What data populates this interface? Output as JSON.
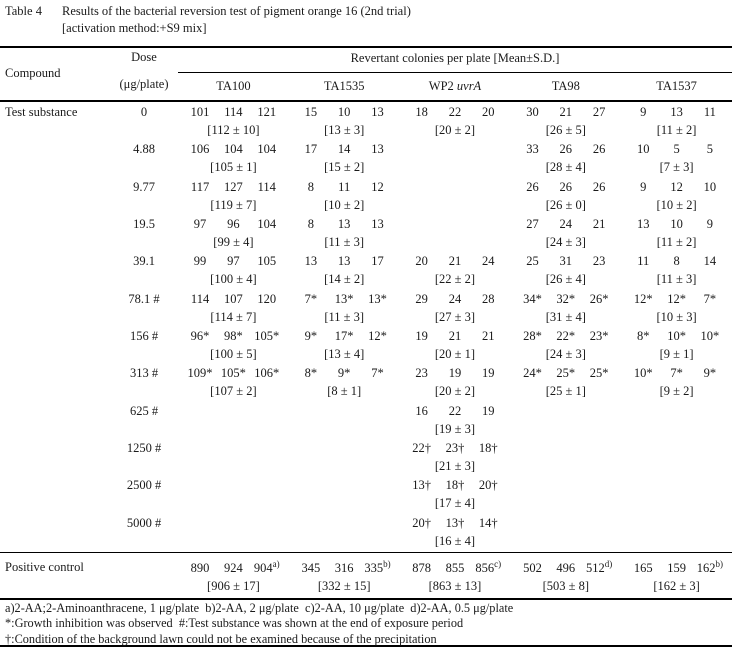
{
  "title": {
    "label": "Table 4",
    "text": "Results of the bacterial reversion test of pigment orange 16 (2nd trial)",
    "subtitle": "[activation method:+S9 mix]"
  },
  "header": {
    "compound": "Compound",
    "dose_line1": "Dose",
    "dose_line2": "(μg/plate)",
    "span": "Revertant colonies per plate [Mean±S.D.]",
    "strains": [
      {
        "label": "TA100"
      },
      {
        "label": "TA1535"
      },
      {
        "label": "WP2 ",
        "italic": "uvrA"
      },
      {
        "label": "TA98"
      },
      {
        "label": "TA1537"
      }
    ]
  },
  "table": {
    "rows": [
      {
        "compound": "Test substance",
        "dose": "0",
        "cells": [
          {
            "values": [
              "101",
              "114",
              "121"
            ],
            "mean": "[112 ± 10]"
          },
          {
            "values": [
              "15",
              "10",
              "13"
            ],
            "mean": "[13 ± 3]"
          },
          {
            "values": [
              "18",
              "22",
              "20"
            ],
            "mean": "[20 ± 2]"
          },
          {
            "values": [
              "30",
              "21",
              "27"
            ],
            "mean": "[26 ± 5]"
          },
          {
            "values": [
              "9",
              "13",
              "11"
            ],
            "mean": "[11 ± 2]"
          }
        ]
      },
      {
        "compound": "",
        "dose": "4.88",
        "cells": [
          {
            "values": [
              "106",
              "104",
              "104"
            ],
            "mean": "[105 ± 1]"
          },
          {
            "values": [
              "17",
              "14",
              "13"
            ],
            "mean": "[15 ± 2]"
          },
          null,
          {
            "values": [
              "33",
              "26",
              "26"
            ],
            "mean": "[28 ± 4]"
          },
          {
            "values": [
              "10",
              "5",
              "5"
            ],
            "mean": "[7 ± 3]"
          }
        ]
      },
      {
        "compound": "",
        "dose": "9.77",
        "cells": [
          {
            "values": [
              "117",
              "127",
              "114"
            ],
            "mean": "[119 ± 7]"
          },
          {
            "values": [
              "8",
              "11",
              "12"
            ],
            "mean": "[10 ± 2]"
          },
          null,
          {
            "values": [
              "26",
              "26",
              "26"
            ],
            "mean": "[26 ± 0]"
          },
          {
            "values": [
              "9",
              "12",
              "10"
            ],
            "mean": "[10 ± 2]"
          }
        ]
      },
      {
        "compound": "",
        "dose": "19.5",
        "cells": [
          {
            "values": [
              "97",
              "96",
              "104"
            ],
            "mean": "[99 ± 4]"
          },
          {
            "values": [
              "8",
              "13",
              "13"
            ],
            "mean": "[11 ± 3]"
          },
          null,
          {
            "values": [
              "27",
              "24",
              "21"
            ],
            "mean": "[24 ± 3]"
          },
          {
            "values": [
              "13",
              "10",
              "9"
            ],
            "mean": "[11 ± 2]"
          }
        ]
      },
      {
        "compound": "",
        "dose": "39.1",
        "cells": [
          {
            "values": [
              "99",
              "97",
              "105"
            ],
            "mean": "[100 ± 4]"
          },
          {
            "values": [
              "13",
              "13",
              "17"
            ],
            "mean": "[14 ± 2]"
          },
          {
            "values": [
              "20",
              "21",
              "24"
            ],
            "mean": "[22 ± 2]"
          },
          {
            "values": [
              "25",
              "31",
              "23"
            ],
            "mean": "[26 ± 4]"
          },
          {
            "values": [
              "11",
              "8",
              "14"
            ],
            "mean": "[11 ± 3]"
          }
        ]
      },
      {
        "compound": "",
        "dose": "78.1 #",
        "cells": [
          {
            "values": [
              "114",
              "107",
              "120"
            ],
            "mean": "[114 ± 7]"
          },
          {
            "values": [
              "7*",
              "13*",
              "13*"
            ],
            "mean": "[11 ± 3]"
          },
          {
            "values": [
              "29",
              "24",
              "28"
            ],
            "mean": "[27 ± 3]"
          },
          {
            "values": [
              "34*",
              "32*",
              "26*"
            ],
            "mean": "[31 ± 4]"
          },
          {
            "values": [
              "12*",
              "12*",
              "7*"
            ],
            "mean": "[10 ± 3]"
          }
        ]
      },
      {
        "compound": "",
        "dose": "156 #",
        "cells": [
          {
            "values": [
              "96*",
              "98*",
              "105*"
            ],
            "mean": "[100 ± 5]"
          },
          {
            "values": [
              "9*",
              "17*",
              "12*"
            ],
            "mean": "[13 ± 4]"
          },
          {
            "values": [
              "19",
              "21",
              "21"
            ],
            "mean": "[20 ± 1]"
          },
          {
            "values": [
              "28*",
              "22*",
              "23*"
            ],
            "mean": "[24 ± 3]"
          },
          {
            "values": [
              "8*",
              "10*",
              "10*"
            ],
            "mean": "[9 ± 1]"
          }
        ]
      },
      {
        "compound": "",
        "dose": "313 #",
        "cells": [
          {
            "values": [
              "109*",
              "105*",
              "106*"
            ],
            "mean": "[107 ± 2]"
          },
          {
            "values": [
              "8*",
              "9*",
              "7*"
            ],
            "mean": "[8 ± 1]"
          },
          {
            "values": [
              "23",
              "19",
              "19"
            ],
            "mean": "[20 ± 2]"
          },
          {
            "values": [
              "24*",
              "25*",
              "25*"
            ],
            "mean": "[25 ± 1]"
          },
          {
            "values": [
              "10*",
              "7*",
              "9*"
            ],
            "mean": "[9 ± 2]"
          }
        ]
      },
      {
        "compound": "",
        "dose": "625 #",
        "cells": [
          null,
          null,
          {
            "values": [
              "16",
              "22",
              "19"
            ],
            "mean": "[19 ± 3]"
          },
          null,
          null
        ]
      },
      {
        "compound": "",
        "dose": "1250 #",
        "cells": [
          null,
          null,
          {
            "values": [
              "22†",
              "23†",
              "18†"
            ],
            "mean": "[21 ± 3]"
          },
          null,
          null
        ]
      },
      {
        "compound": "",
        "dose": "2500 #",
        "cells": [
          null,
          null,
          {
            "values": [
              "13†",
              "18†",
              "20†"
            ],
            "mean": "[17 ± 4]"
          },
          null,
          null
        ]
      },
      {
        "compound": "",
        "dose": "5000 #",
        "cells": [
          null,
          null,
          {
            "values": [
              "20†",
              "13†",
              "14†"
            ],
            "mean": "[16 ± 4]"
          },
          null,
          null
        ]
      }
    ],
    "positive_control": {
      "compound": "Positive control",
      "dose": "",
      "cells": [
        {
          "values": [
            "890",
            "924",
            "904^a)"
          ],
          "mean": "[906 ± 17]"
        },
        {
          "values": [
            "345",
            "316",
            "335^b)"
          ],
          "mean": "[332 ± 15]"
        },
        {
          "values": [
            "878",
            "855",
            "856^c)"
          ],
          "mean": "[863 ± 13]"
        },
        {
          "values": [
            "502",
            "496",
            "512^d)"
          ],
          "mean": "[503 ± 8]"
        },
        {
          "values": [
            "165",
            "159",
            "162^b)"
          ],
          "mean": "[162 ± 3]"
        }
      ]
    }
  },
  "footnotes": {
    "line1": "a)2-AA;2-Aminoanthracene, 1 μg/plate  b)2-AA, 2 μg/plate  c)2-AA, 10 μg/plate  d)2-AA, 0.5 μg/plate",
    "line2": "*:Growth inhibition was observed  #:Test substance was shown at the end of exposure period",
    "line3": "†:Condition of the background lawn could not be examined because of the precipitation"
  }
}
